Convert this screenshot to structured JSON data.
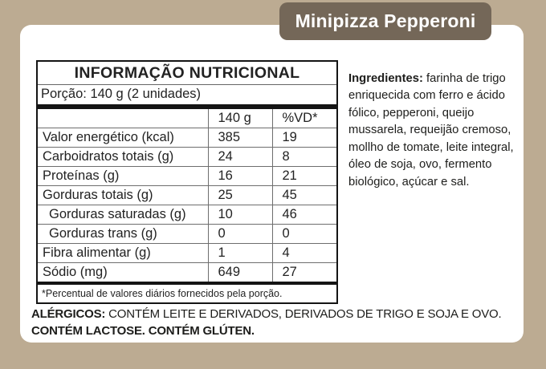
{
  "badge": {
    "title": "Minipizza Pepperoni"
  },
  "nutrition_table": {
    "title": "INFORMAÇÃO NUTRICIONAL",
    "portion": "Porção: 140 g (2 unidades)",
    "columns": {
      "label": "",
      "amount": "140 g",
      "vd": "%VD*"
    },
    "rows": [
      {
        "label": "Valor energético (kcal)",
        "amount": "385",
        "vd": "19",
        "indent": false
      },
      {
        "label": "Carboidratos totais (g)",
        "amount": "24",
        "vd": "8",
        "indent": false
      },
      {
        "label": "Proteínas (g)",
        "amount": "16",
        "vd": "21",
        "indent": false
      },
      {
        "label": "Gorduras totais (g)",
        "amount": "25",
        "vd": "45",
        "indent": false
      },
      {
        "label": "Gorduras saturadas (g)",
        "amount": "10",
        "vd": "46",
        "indent": true
      },
      {
        "label": "Gorduras trans (g)",
        "amount": "0",
        "vd": "0",
        "indent": true
      },
      {
        "label": "Fibra alimentar (g)",
        "amount": "1",
        "vd": "4",
        "indent": false
      },
      {
        "label": "Sódio (mg)",
        "amount": "649",
        "vd": "27",
        "indent": false
      }
    ],
    "footnote": "*Percentual de valores diários fornecidos pela porção."
  },
  "ingredients": {
    "label": "Ingredientes:",
    "text": " farinha de trigo enriquecida com ferro e ácido fólico, pepperoni, queijo mussarela, requeijão cremoso, mollho de tomate, leite integral, óleo de soja, ovo, fermento biológico, açúcar e sal."
  },
  "allergens": {
    "label": "ALÉRGICOS:",
    "line1": " CONTÉM LEITE E DERIVADOS, DERIVADOS DE TRIGO E SOJA E OVO.",
    "line2": "CONTÉM LACTOSE. CONTÉM GLÚTEN."
  },
  "colors": {
    "background": "#bcab92",
    "badge": "#746758",
    "card": "#ffffff",
    "text": "#1d1d1b",
    "table_border": "#141414"
  }
}
